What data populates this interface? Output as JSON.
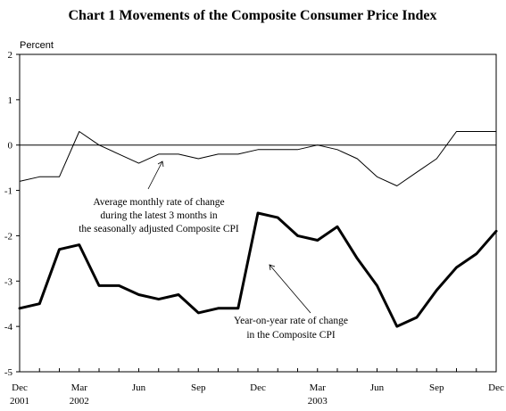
{
  "chart_data": {
    "type": "line",
    "title": "Chart 1    Movements of the Composite Consumer Price Index",
    "ylabel": "Percent",
    "ylim": [
      -5,
      2
    ],
    "yticks": [
      "2",
      "1",
      "0",
      "-1",
      "-2",
      "-3",
      "-4",
      "-5"
    ],
    "x": [
      "2001-12",
      "2002-01",
      "2002-02",
      "2002-03",
      "2002-04",
      "2002-05",
      "2002-06",
      "2002-07",
      "2002-08",
      "2002-09",
      "2002-10",
      "2002-11",
      "2002-12",
      "2003-01",
      "2003-02",
      "2003-03",
      "2003-04",
      "2003-05",
      "2003-06",
      "2003-07",
      "2003-08",
      "2003-09",
      "2003-10",
      "2003-11",
      "2003-12"
    ],
    "xticks": [
      {
        "month": "Dec",
        "year": "2001"
      },
      {
        "month": "Mar",
        "year": "2002"
      },
      {
        "month": "Jun",
        "year": ""
      },
      {
        "month": "Sep",
        "year": ""
      },
      {
        "month": "Dec",
        "year": ""
      },
      {
        "month": "Mar",
        "year": "2003"
      },
      {
        "month": "Jun",
        "year": ""
      },
      {
        "month": "Sep",
        "year": ""
      },
      {
        "month": "Dec",
        "year": ""
      }
    ],
    "series": [
      {
        "values": [
          -0.8,
          -0.7,
          -0.7,
          0.3,
          0.0,
          -0.2,
          -0.4,
          -0.2,
          -0.2,
          -0.3,
          -0.2,
          -0.2,
          -0.1,
          -0.1,
          -0.1,
          0.0,
          -0.1,
          -0.3,
          -0.7,
          -0.9,
          -0.6,
          -0.3,
          0.3,
          0.3,
          0.3
        ],
        "color": "#000000",
        "style": "thin"
      },
      {
        "values": [
          -3.6,
          -3.5,
          -2.3,
          -2.2,
          -3.1,
          -3.1,
          -3.3,
          -3.4,
          -3.3,
          -3.7,
          -3.6,
          -3.6,
          -1.5,
          -1.6,
          -2.0,
          -2.1,
          -1.8,
          -2.5,
          -3.1,
          -4.0,
          -3.8,
          -3.2,
          -2.7,
          -2.4,
          -1.9
        ],
        "color": "#000000",
        "style": "thick"
      }
    ],
    "annotations": [
      {
        "lines": [
          "Average monthly rate of change",
          "during the latest 3 months in",
          "the seasonally adjusted Composite CPI"
        ]
      },
      {
        "lines": [
          "Year-on-year rate of change",
          "in the Composite CPI"
        ]
      }
    ]
  }
}
